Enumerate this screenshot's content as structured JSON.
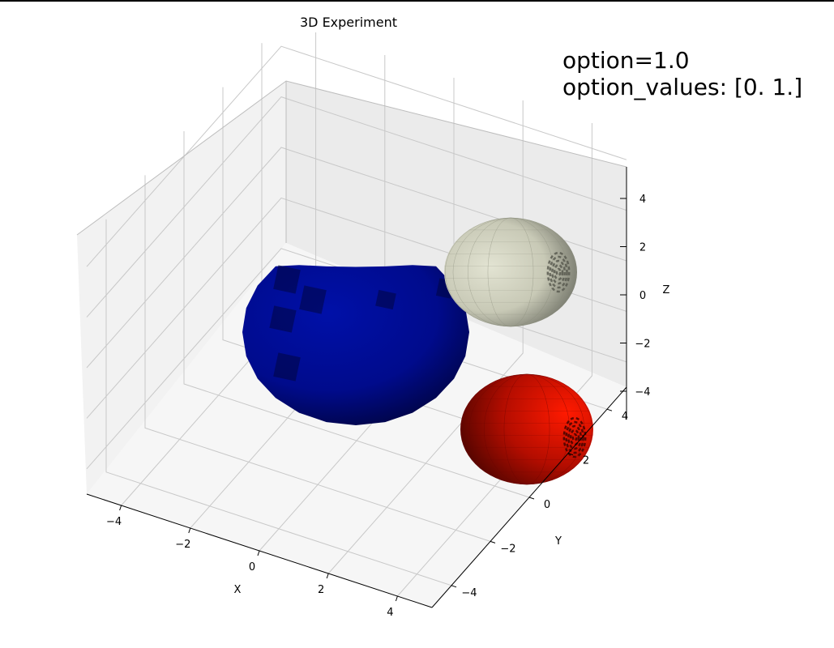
{
  "chart_data": {
    "type": "scatter3d",
    "title": "3D Experiment",
    "xlabel": "X",
    "ylabel": "Y",
    "zlabel": "Z",
    "xlim": [
      -5,
      5
    ],
    "ylim": [
      -5,
      5
    ],
    "zlim": [
      -5,
      5
    ],
    "x_ticks": [
      "−4",
      "−2",
      "0",
      "2",
      "4"
    ],
    "y_ticks": [
      "−4",
      "−2",
      "0",
      "2",
      "4"
    ],
    "z_ticks": [
      "−4",
      "−2",
      "0",
      "2",
      "4"
    ],
    "grid": true,
    "annotations": [
      "option=1.0",
      "option_values: [0. 1.]"
    ],
    "series": [
      {
        "shape": "sphere",
        "color": "#000b8c",
        "center": [
          -1,
          1,
          0
        ],
        "radius": 2.6
      },
      {
        "shape": "sphere",
        "color": "#c8c9b6",
        "center": [
          3.5,
          3.5,
          2
        ],
        "radius": 1.6
      },
      {
        "shape": "sphere",
        "color": "#ee1100",
        "center": [
          4.5,
          1.5,
          -3
        ],
        "radius": 1.6
      }
    ]
  }
}
